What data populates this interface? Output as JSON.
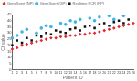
{
  "chart_data": {
    "type": "scatter",
    "x_label": "Patient ID",
    "y_label": "Ct value",
    "categories": [
      "1",
      "2",
      "3",
      "4",
      "5",
      "6",
      "7",
      "8",
      "9",
      "10",
      "11",
      "12",
      "13",
      "14",
      "15",
      "16",
      "17",
      "18",
      "19",
      "20",
      "21",
      "22",
      "23",
      "24",
      "25",
      "26"
    ],
    "series": [
      {
        "name": "GeneXpert (NP)",
        "color": "#e8242c",
        "marker": "diamond",
        "values": [
          17,
          18,
          20,
          21,
          22,
          23,
          24,
          25,
          26,
          26,
          27,
          27,
          28,
          28,
          29,
          29,
          30,
          30,
          31,
          32,
          33,
          34,
          35,
          36,
          37,
          38
        ]
      },
      {
        "name": "GeneXpert (GP)",
        "color": "#3fb4e8",
        "marker": "circle",
        "values": [
          26,
          28,
          31,
          33,
          null,
          30,
          34,
          36,
          35,
          null,
          38,
          37,
          40,
          39,
          41,
          null,
          42,
          40,
          43,
          null,
          44,
          41,
          null,
          44,
          null,
          null
        ]
      },
      {
        "name": "Realtime PCR (NP)",
        "color": "#111111",
        "marker": "square",
        "values": [
          20,
          24,
          22,
          26,
          24,
          28,
          27,
          30,
          29,
          32,
          31,
          30,
          33,
          34,
          32,
          35,
          36,
          34,
          37,
          38,
          36,
          39,
          40,
          38,
          41,
          null
        ]
      }
    ],
    "ylim": [
      0,
      45
    ],
    "yticks": [
      0,
      5,
      10,
      15,
      20,
      25,
      30,
      35,
      40,
      45
    ],
    "grid": false,
    "legend": "top-left"
  }
}
